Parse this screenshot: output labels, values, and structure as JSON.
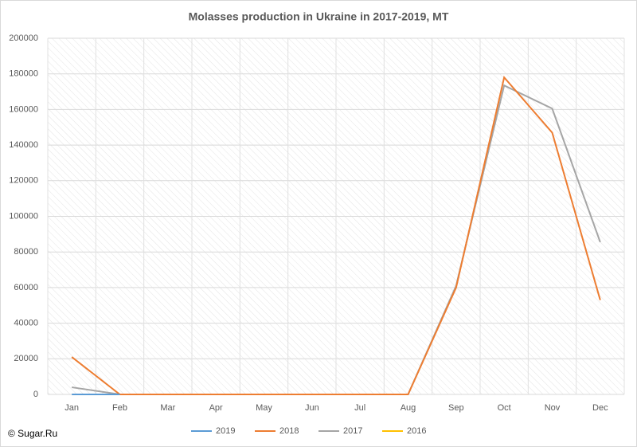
{
  "chart_data": {
    "type": "line",
    "title": "Molasses production in Ukraine in 2017-2019, MT",
    "source": "© Sugar.Ru",
    "categories": [
      "Jan",
      "Feb",
      "Mar",
      "Apr",
      "May",
      "Jun",
      "Jul",
      "Aug",
      "Sep",
      "Oct",
      "Nov",
      "Dec"
    ],
    "series": [
      {
        "name": "2019",
        "color": "#5b9bd5",
        "values": [
          0,
          0,
          null,
          null,
          null,
          null,
          null,
          null,
          null,
          null,
          null,
          null
        ]
      },
      {
        "name": "2018",
        "color": "#ed7d31",
        "values": [
          21000,
          0,
          0,
          0,
          0,
          0,
          0,
          0,
          60000,
          178000,
          147000,
          53000
        ]
      },
      {
        "name": "2017",
        "color": "#a5a5a5",
        "values": [
          4000,
          0,
          0,
          0,
          0,
          0,
          0,
          0,
          61000,
          173500,
          160500,
          85500
        ]
      },
      {
        "name": "2016",
        "color": "#ffc000",
        "values": [
          null,
          null,
          null,
          null,
          null,
          null,
          null,
          null,
          null,
          null,
          null,
          null
        ]
      }
    ],
    "ylim": [
      0,
      200000
    ],
    "yticks": [
      0,
      20000,
      40000,
      60000,
      80000,
      100000,
      120000,
      140000,
      160000,
      180000,
      200000
    ],
    "grid": true
  }
}
